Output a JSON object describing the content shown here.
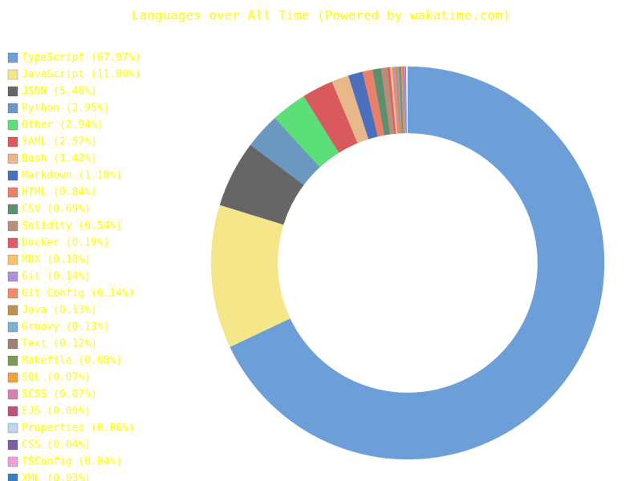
{
  "chart_data": {
    "type": "donut",
    "title": "Languages over All Time (Powered by wakatime.com)",
    "categories": [
      "TypeScript (67.97%)",
      "JavaScript (11.80%)",
      "JSON (5.48%)",
      "Python (2.95%)",
      "Other (2.94%)",
      "YAML (2.57%)",
      "Bash (1.42%)",
      "Markdown (1.18%)",
      "HTML (0.84%)",
      "CSV (0.69%)",
      "Solidity (0.54%)",
      "Docker (0.19%)",
      "MDX (0.18%)",
      "Git (0.14%)",
      "Git Config (0.14%)",
      "Java (0.13%)",
      "Groovy (0.13%)",
      "Text (0.12%)",
      "Makefile (0.08%)",
      "SQL (0.07%)",
      "SCSS (0.07%)",
      "EJS (0.06%)",
      "Properties (0.06%)",
      "CSS (0.04%)",
      "TSConfig (0.04%)",
      "XML (0.03%)"
    ],
    "values": [
      67.97,
      11.8,
      5.48,
      2.95,
      2.94,
      2.57,
      1.42,
      1.18,
      0.84,
      0.69,
      0.54,
      0.19,
      0.18,
      0.14,
      0.14,
      0.13,
      0.13,
      0.12,
      0.08,
      0.07,
      0.07,
      0.06,
      0.06,
      0.04,
      0.04,
      0.03
    ],
    "colors": [
      "#6c9fd7",
      "#f5e68a",
      "#666666",
      "#6b98c0",
      "#5cdf78",
      "#d95a5c",
      "#e8b88a",
      "#4a6fbd",
      "#e8806a",
      "#5a8f70",
      "#b88e7a",
      "#e05a6a",
      "#f8c46a",
      "#b090d8",
      "#f58a6a",
      "#c09050",
      "#7ab0d0",
      "#a08070",
      "#7a9a5a",
      "#f0a040",
      "#d880b0",
      "#c05080",
      "#c0d4f0",
      "#7a60a0",
      "#f0a0d8",
      "#3a80c0"
    ]
  }
}
